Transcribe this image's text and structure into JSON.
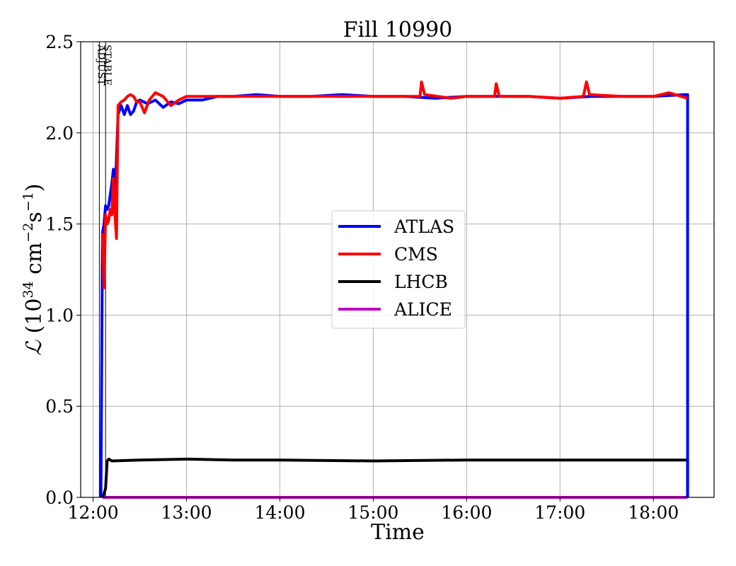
{
  "chart_data": {
    "type": "line",
    "title": "Fill 10990",
    "xlabel": "Time",
    "ylabel": "ℒ (10³⁴ cm⁻²s⁻¹)",
    "ylabel_parts": {
      "symbol": "ℒ",
      "open": " (10",
      "exp1": "34",
      "mid": " cm",
      "exp2": "−2",
      "mid2": "s",
      "exp3": "−1",
      "close": ")"
    },
    "xlim": [
      "11:52",
      "18:39"
    ],
    "ylim": [
      0,
      2.5
    ],
    "x_ticks": [
      "12:00",
      "13:00",
      "14:00",
      "15:00",
      "16:00",
      "17:00",
      "18:00"
    ],
    "y_ticks": [
      "0.0",
      "0.5",
      "1.0",
      "1.5",
      "2.0",
      "2.5"
    ],
    "grid": true,
    "legend_position": "center-right",
    "annotations": [
      {
        "text": "ADJUST",
        "time": "12:04"
      },
      {
        "text": "STABLE",
        "time": "12:08"
      }
    ],
    "series": [
      {
        "name": "ATLAS",
        "color": "#0000ff",
        "points": [
          [
            "12:05",
            0.0
          ],
          [
            "12:06",
            1.45
          ],
          [
            "12:07",
            1.5
          ],
          [
            "12:08",
            1.6
          ],
          [
            "12:09",
            1.58
          ],
          [
            "12:10",
            1.6
          ],
          [
            "12:12",
            1.72
          ],
          [
            "12:13",
            1.8
          ],
          [
            "12:14",
            1.62
          ],
          [
            "12:16",
            2.1
          ],
          [
            "12:18",
            2.15
          ],
          [
            "12:20",
            2.1
          ],
          [
            "12:22",
            2.15
          ],
          [
            "12:24",
            2.1
          ],
          [
            "12:26",
            2.12
          ],
          [
            "12:28",
            2.17
          ],
          [
            "12:30",
            2.18
          ],
          [
            "12:35",
            2.16
          ],
          [
            "12:40",
            2.18
          ],
          [
            "12:45",
            2.14
          ],
          [
            "12:50",
            2.17
          ],
          [
            "12:55",
            2.16
          ],
          [
            "13:00",
            2.18
          ],
          [
            "13:10",
            2.18
          ],
          [
            "13:20",
            2.2
          ],
          [
            "13:30",
            2.2
          ],
          [
            "13:45",
            2.21
          ],
          [
            "14:00",
            2.2
          ],
          [
            "14:20",
            2.2
          ],
          [
            "14:40",
            2.21
          ],
          [
            "15:00",
            2.2
          ],
          [
            "15:20",
            2.2
          ],
          [
            "15:40",
            2.19
          ],
          [
            "16:00",
            2.2
          ],
          [
            "16:20",
            2.2
          ],
          [
            "16:40",
            2.2
          ],
          [
            "17:00",
            2.19
          ],
          [
            "17:20",
            2.2
          ],
          [
            "17:40",
            2.2
          ],
          [
            "18:00",
            2.2
          ],
          [
            "18:20",
            2.21
          ],
          [
            "18:22",
            2.21
          ],
          [
            "18:22",
            0.0
          ]
        ]
      },
      {
        "name": "CMS",
        "color": "#ff0000",
        "points": [
          [
            "12:06",
            1.45
          ],
          [
            "12:07",
            1.15
          ],
          [
            "12:08",
            1.55
          ],
          [
            "12:09",
            1.5
          ],
          [
            "12:10",
            1.52
          ],
          [
            "12:11",
            1.58
          ],
          [
            "12:12",
            1.55
          ],
          [
            "12:13",
            1.75
          ],
          [
            "12:14",
            1.55
          ],
          [
            "12:15",
            1.42
          ],
          [
            "12:16",
            2.15
          ],
          [
            "12:18",
            2.17
          ],
          [
            "12:20",
            2.18
          ],
          [
            "12:22",
            2.2
          ],
          [
            "12:24",
            2.21
          ],
          [
            "12:26",
            2.2
          ],
          [
            "12:28",
            2.17
          ],
          [
            "12:30",
            2.17
          ],
          [
            "12:33",
            2.11
          ],
          [
            "12:36",
            2.18
          ],
          [
            "12:40",
            2.22
          ],
          [
            "12:45",
            2.2
          ],
          [
            "12:50",
            2.15
          ],
          [
            "12:55",
            2.18
          ],
          [
            "13:00",
            2.2
          ],
          [
            "13:10",
            2.2
          ],
          [
            "13:20",
            2.2
          ],
          [
            "13:30",
            2.2
          ],
          [
            "13:45",
            2.2
          ],
          [
            "14:00",
            2.2
          ],
          [
            "14:20",
            2.2
          ],
          [
            "14:40",
            2.2
          ],
          [
            "15:00",
            2.2
          ],
          [
            "15:20",
            2.2
          ],
          [
            "15:30",
            2.2
          ],
          [
            "15:31",
            2.28
          ],
          [
            "15:33",
            2.21
          ],
          [
            "15:50",
            2.19
          ],
          [
            "16:00",
            2.2
          ],
          [
            "16:18",
            2.2
          ],
          [
            "16:19",
            2.27
          ],
          [
            "16:21",
            2.2
          ],
          [
            "16:40",
            2.2
          ],
          [
            "17:00",
            2.19
          ],
          [
            "17:15",
            2.2
          ],
          [
            "17:17",
            2.28
          ],
          [
            "17:19",
            2.21
          ],
          [
            "17:40",
            2.2
          ],
          [
            "18:00",
            2.2
          ],
          [
            "18:10",
            2.22
          ],
          [
            "18:22",
            2.19
          ]
        ]
      },
      {
        "name": "LHCB",
        "color": "#000000",
        "points": [
          [
            "12:06",
            0.0
          ],
          [
            "12:07",
            0.02
          ],
          [
            "12:08",
            0.05
          ],
          [
            "12:09",
            0.2
          ],
          [
            "12:10",
            0.21
          ],
          [
            "12:12",
            0.2
          ],
          [
            "12:30",
            0.205
          ],
          [
            "13:00",
            0.21
          ],
          [
            "13:30",
            0.205
          ],
          [
            "14:00",
            0.205
          ],
          [
            "15:00",
            0.2
          ],
          [
            "16:00",
            0.205
          ],
          [
            "17:00",
            0.205
          ],
          [
            "18:00",
            0.205
          ],
          [
            "18:22",
            0.205
          ],
          [
            "18:22",
            0.0
          ]
        ]
      },
      {
        "name": "ALICE",
        "color": "#bf00bf",
        "points": [
          [
            "12:06",
            0.0
          ],
          [
            "18:22",
            0.0
          ]
        ]
      }
    ]
  }
}
